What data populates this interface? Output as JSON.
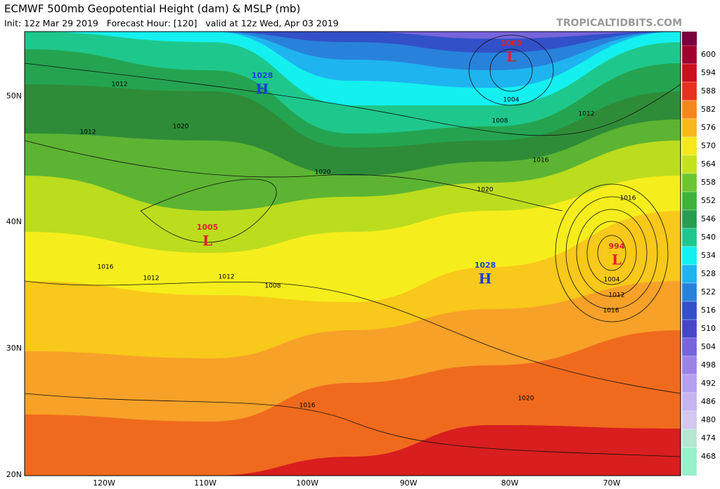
{
  "header": {
    "title": "ECMWF 500mb Geopotential Height (dam) & MSLP (mb)",
    "subtitle": "Init: 12z Mar 29 2019   Forecast Hour: [120]   valid at 12z Wed, Apr 03 2019",
    "watermark": "TROPICALTIDBITS.COM"
  },
  "colorbar": {
    "levels": [
      {
        "label": "600",
        "color": "#a0002e"
      },
      {
        "label": "594",
        "color": "#cc0f1c"
      },
      {
        "label": "588",
        "color": "#e8301c"
      },
      {
        "label": "582",
        "color": "#f5861c"
      },
      {
        "label": "576",
        "color": "#f8b81c"
      },
      {
        "label": "570",
        "color": "#f6e81c"
      },
      {
        "label": "564",
        "color": "#c4e21c"
      },
      {
        "label": "558",
        "color": "#6cc632"
      },
      {
        "label": "552",
        "color": "#3cb43c"
      },
      {
        "label": "546",
        "color": "#269e4e"
      },
      {
        "label": "540",
        "color": "#1ec88c"
      },
      {
        "label": "534",
        "color": "#14f0f0"
      },
      {
        "label": "528",
        "color": "#1eb4f0"
      },
      {
        "label": "522",
        "color": "#2882dc"
      },
      {
        "label": "516",
        "color": "#3250c8"
      },
      {
        "label": "510",
        "color": "#4646c8"
      },
      {
        "label": "504",
        "color": "#7864dc"
      },
      {
        "label": "498",
        "color": "#9b82e6"
      },
      {
        "label": "492",
        "color": "#b4a0f0"
      },
      {
        "label": "486",
        "color": "#c8b4f0"
      },
      {
        "label": "480",
        "color": "#d2c8f0"
      },
      {
        "label": "474",
        "color": "#b4e6d2"
      },
      {
        "label": "468",
        "color": "#96f0c8"
      }
    ]
  },
  "axes": {
    "latitudes": [
      "50N",
      "40N",
      "30N",
      "20N"
    ],
    "longitudes": [
      "120W",
      "110W",
      "100W",
      "90W",
      "80W",
      "70W"
    ]
  },
  "centers": [
    {
      "pressure": "1028",
      "symbol": "H"
    },
    {
      "pressure": "1000",
      "symbol": "L"
    },
    {
      "pressure": "1005",
      "symbol": "L"
    },
    {
      "pressure": "994",
      "symbol": "L"
    },
    {
      "pressure": "1028",
      "symbol": "H"
    }
  ],
  "isobar_labels": [
    "1012",
    "1012",
    "1020",
    "1020",
    "1020",
    "1004",
    "1008",
    "1012",
    "1016",
    "1016",
    "1004",
    "1012",
    "1016",
    "1016",
    "1012",
    "1012",
    "1008",
    "1016",
    "1020"
  ]
}
